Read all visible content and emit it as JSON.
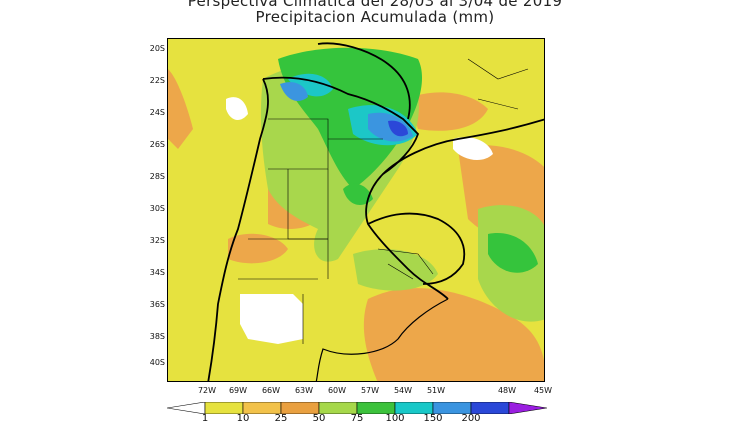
{
  "title": {
    "line1": "Perspectiva Climatica del 28/03 al 3/04   de 2019",
    "line2": "Precipitacion Acumulada (mm)"
  },
  "axes": {
    "lat_labels": [
      "20S",
      "22S",
      "24S",
      "26S",
      "28S",
      "30S",
      "32S",
      "34S",
      "36S",
      "38S",
      "40S"
    ],
    "lon_labels": [
      "72W",
      "69W",
      "66W",
      "63W",
      "60W",
      "57W",
      "54W",
      "51W",
      "48W",
      "45W"
    ]
  },
  "colorbar": {
    "labels": [
      "1",
      "10",
      "25",
      "50",
      "75",
      "100",
      "150",
      "200"
    ],
    "colors": [
      "#ffffff",
      "#e8e03a",
      "#f2c24a",
      "#e9a040",
      "#a6d84a",
      "#3cc23c",
      "#18c8c8",
      "#3a94e0",
      "#2a48d8",
      "#9a1ee0"
    ]
  },
  "legend_colors": {
    "white": "#ffffff",
    "yellow": "#e6e23f",
    "orange": "#eda74a",
    "light_green": "#a8d74c",
    "green": "#35c43c",
    "cyan": "#1cc7c7",
    "light_blue": "#3b95e0",
    "blue": "#2b47d8"
  }
}
